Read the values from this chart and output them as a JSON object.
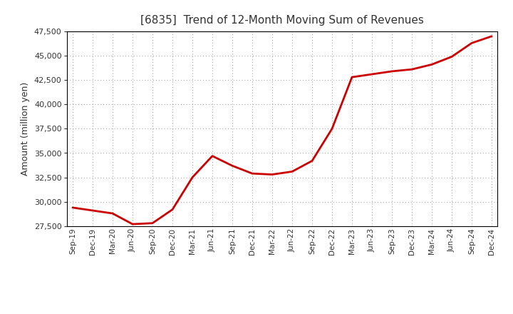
{
  "title": "[6835]  Trend of 12-Month Moving Sum of Revenues",
  "ylabel": "Amount (million yen)",
  "line_color": "#CC0000",
  "background_color": "#FFFFFF",
  "plot_bg_color": "#FFFFFF",
  "grid_color": "#999999",
  "title_color": "#333333",
  "ylim": [
    27500,
    47500
  ],
  "yticks": [
    27500,
    30000,
    32500,
    35000,
    37500,
    40000,
    42500,
    45000,
    47500
  ],
  "x_labels": [
    "Sep-19",
    "Dec-19",
    "Mar-20",
    "Jun-20",
    "Sep-20",
    "Dec-20",
    "Mar-21",
    "Jun-21",
    "Sep-21",
    "Dec-21",
    "Mar-22",
    "Jun-22",
    "Sep-22",
    "Dec-22",
    "Mar-23",
    "Jun-23",
    "Sep-23",
    "Dec-23",
    "Mar-24",
    "Jun-24",
    "Sep-24",
    "Dec-24"
  ],
  "values": [
    29400,
    29100,
    28800,
    27700,
    27800,
    29200,
    32500,
    34700,
    33700,
    32900,
    32800,
    33100,
    34200,
    37500,
    42800,
    43100,
    43400,
    43600,
    44100,
    44900,
    46300,
    47000
  ]
}
